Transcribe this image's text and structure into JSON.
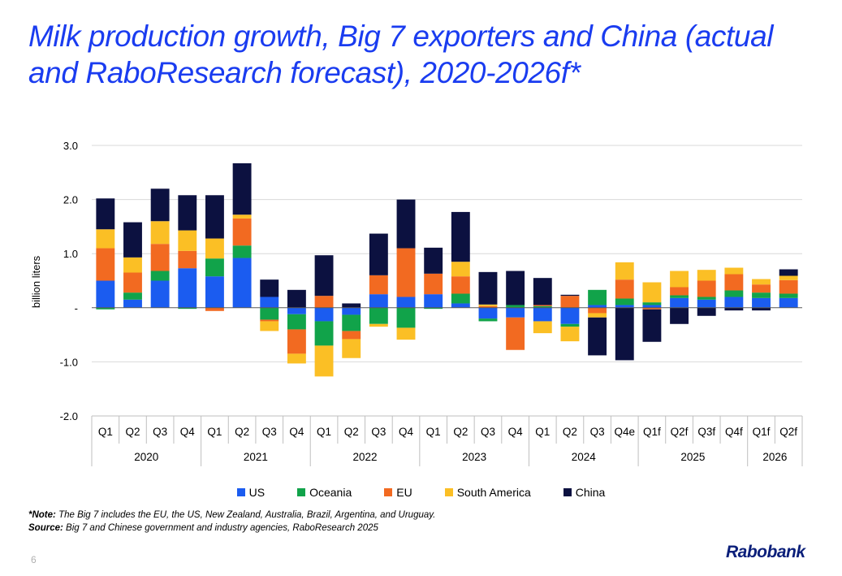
{
  "title": "Milk production growth, Big 7 exporters and China (actual and RaboResearch forecast), 2020-2026f*",
  "note_label": "*Note:",
  "note_text": " The Big 7 includes the EU, the US, New Zealand, Australia, Brazil, Argentina, and Uruguay.",
  "source_label": "Source:",
  "source_text": " Big 7 and Chinese government and industry agencies, RaboResearch 2025",
  "page_number": "6",
  "logo_text": "Rabobank",
  "chart_data": {
    "type": "bar",
    "stacked": true,
    "title": "Milk production growth, Big 7 exporters and China (actual and RaboResearch forecast), 2020-2026f*",
    "ylabel": "billion liters",
    "xlabel": "",
    "ylim": [
      -2.0,
      3.0
    ],
    "yticks": [
      3.0,
      2.0,
      1.0,
      0,
      -1.0,
      -2.0
    ],
    "ytick_labels": [
      "3.0",
      "2.0",
      "1.0",
      "-",
      "-1.0",
      "-2.0"
    ],
    "grid": true,
    "legend_position": "bottom",
    "categories": [
      "Q1",
      "Q2",
      "Q3",
      "Q4",
      "Q1",
      "Q2",
      "Q3",
      "Q4",
      "Q1",
      "Q2",
      "Q3",
      "Q4",
      "Q1",
      "Q2",
      "Q3",
      "Q4",
      "Q1",
      "Q2",
      "Q3",
      "Q4e",
      "Q1f",
      "Q2f",
      "Q3f",
      "Q4f",
      "Q1f",
      "Q2f"
    ],
    "year_groups": [
      {
        "label": "2020",
        "count": 4
      },
      {
        "label": "2021",
        "count": 4
      },
      {
        "label": "2022",
        "count": 4
      },
      {
        "label": "2023",
        "count": 4
      },
      {
        "label": "2024",
        "count": 4
      },
      {
        "label": "2025",
        "count": 4
      },
      {
        "label": "2026",
        "count": 2
      }
    ],
    "series": [
      {
        "name": "US",
        "color": "#1b5cf0",
        "values": [
          0.5,
          0.15,
          0.5,
          0.73,
          0.58,
          0.92,
          0.2,
          -0.12,
          -0.25,
          -0.13,
          0.25,
          0.2,
          0.25,
          0.08,
          -0.2,
          -0.18,
          -0.25,
          -0.3,
          0.05,
          0.05,
          0.05,
          0.18,
          0.15,
          0.2,
          0.18,
          0.18
        ]
      },
      {
        "name": "Oceania",
        "color": "#11a34a",
        "values": [
          -0.03,
          0.13,
          0.18,
          -0.02,
          0.33,
          0.23,
          -0.22,
          -0.28,
          -0.45,
          -0.3,
          -0.3,
          -0.37,
          -0.02,
          0.18,
          -0.05,
          0.05,
          0.03,
          -0.05,
          0.28,
          0.12,
          0.05,
          0.05,
          0.05,
          0.12,
          0.1,
          0.08
        ]
      },
      {
        "name": "EU",
        "color": "#f26a21",
        "values": [
          0.6,
          0.37,
          0.5,
          0.32,
          -0.06,
          0.5,
          -0.03,
          -0.45,
          0.22,
          -0.15,
          0.35,
          0.9,
          0.38,
          0.32,
          0.03,
          -0.6,
          0.02,
          0.22,
          -0.1,
          0.35,
          -0.03,
          0.15,
          0.3,
          0.3,
          0.15,
          0.25
        ]
      },
      {
        "name": "South America",
        "color": "#fbbf25",
        "values": [
          0.35,
          0.28,
          0.42,
          0.38,
          0.37,
          0.07,
          -0.18,
          -0.18,
          -0.57,
          -0.35,
          -0.05,
          -0.22,
          0.0,
          0.27,
          0.03,
          0.0,
          -0.22,
          -0.27,
          -0.08,
          0.32,
          0.37,
          0.3,
          0.2,
          0.12,
          0.1,
          0.08
        ]
      },
      {
        "name": "China",
        "color": "#0c1140",
        "values": [
          0.57,
          0.65,
          0.6,
          0.65,
          0.8,
          0.95,
          0.32,
          0.33,
          0.75,
          0.08,
          0.77,
          0.9,
          0.48,
          0.92,
          0.6,
          0.63,
          0.5,
          0.02,
          -0.7,
          -0.97,
          -0.6,
          -0.3,
          -0.15,
          -0.05,
          -0.05,
          0.12
        ]
      }
    ]
  }
}
